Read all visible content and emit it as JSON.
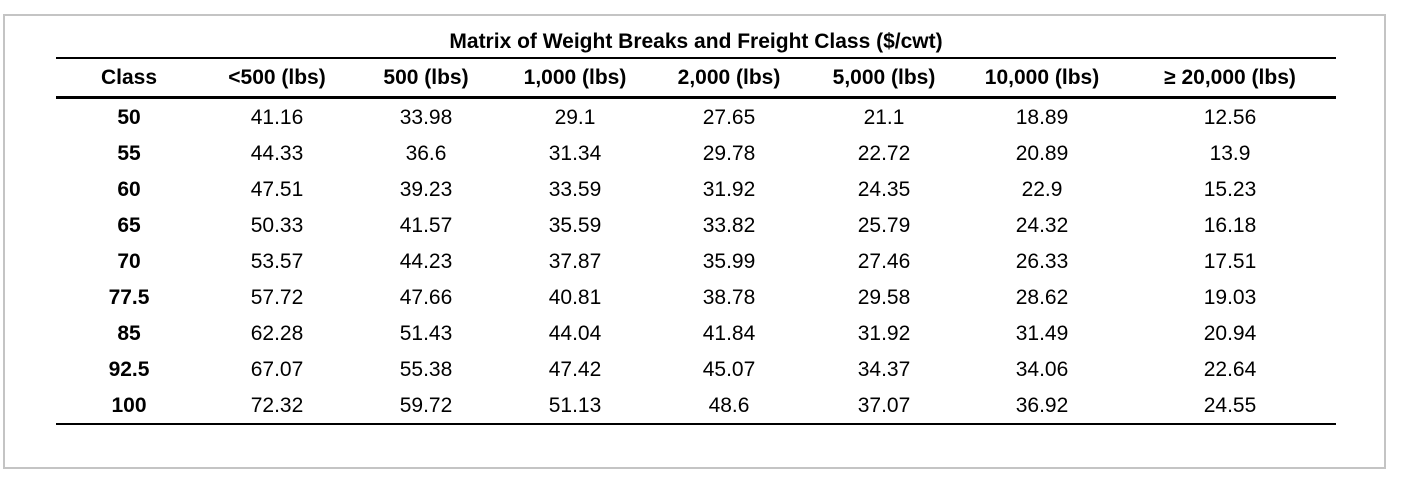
{
  "table": {
    "title": "Matrix of Weight Breaks and Freight Class ($/cwt)",
    "headers": [
      "Class",
      "<500 (lbs)",
      "500 (lbs)",
      "1,000 (lbs)",
      "2,000 (lbs)",
      "5,000 (lbs)",
      "10,000 (lbs)",
      "≥ 20,000 (lbs)"
    ],
    "rows": [
      [
        "50",
        "41.16",
        "33.98",
        "29.1",
        "27.65",
        "21.1",
        "18.89",
        "12.56"
      ],
      [
        "55",
        "44.33",
        "36.6",
        "31.34",
        "29.78",
        "22.72",
        "20.89",
        "13.9"
      ],
      [
        "60",
        "47.51",
        "39.23",
        "33.59",
        "31.92",
        "24.35",
        "22.9",
        "15.23"
      ],
      [
        "65",
        "50.33",
        "41.57",
        "35.59",
        "33.82",
        "25.79",
        "24.32",
        "16.18"
      ],
      [
        "70",
        "53.57",
        "44.23",
        "37.87",
        "35.99",
        "27.46",
        "26.33",
        "17.51"
      ],
      [
        "77.5",
        "57.72",
        "47.66",
        "40.81",
        "38.78",
        "29.58",
        "28.62",
        "19.03"
      ],
      [
        "85",
        "62.28",
        "51.43",
        "44.04",
        "41.84",
        "31.92",
        "31.49",
        "20.94"
      ],
      [
        "92.5",
        "67.07",
        "55.38",
        "47.42",
        "45.07",
        "34.37",
        "34.06",
        "22.64"
      ],
      [
        "100",
        "72.32",
        "59.72",
        "51.13",
        "48.6",
        "37.07",
        "36.92",
        "24.55"
      ]
    ]
  },
  "colors": {
    "frame_border": "#c4c4c4",
    "text": "#000000",
    "background": "#ffffff"
  }
}
